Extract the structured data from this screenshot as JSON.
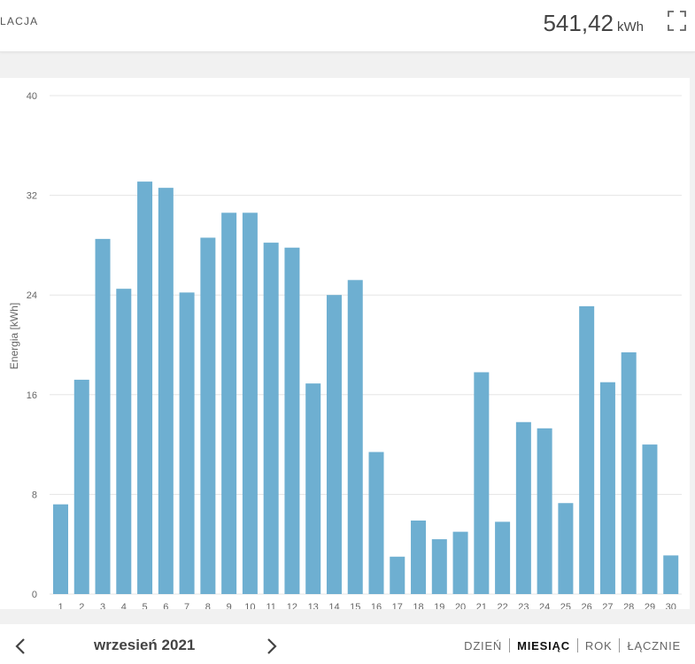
{
  "header": {
    "title": "LACJA",
    "energy_value": "541,42",
    "energy_unit": "kWh",
    "fullscreen_icon": "expand-icon"
  },
  "footer": {
    "period_label": "wrzesień 2021",
    "prev_icon": "chevron-left-icon",
    "next_icon": "chevron-right-icon",
    "tabs": [
      {
        "label": "DZIEŃ",
        "active": false
      },
      {
        "label": "MIESIĄC",
        "active": true
      },
      {
        "label": "ROK",
        "active": false
      },
      {
        "label": "ŁĄCZNIE",
        "active": false
      }
    ]
  },
  "colors": {
    "bar": "#6eafd1",
    "grid": "#e5e5e5",
    "axis_text": "#666666"
  },
  "chart_data": {
    "type": "bar",
    "title": "",
    "xlabel": "",
    "ylabel": "Energia [kWh]",
    "ylim": [
      0,
      40
    ],
    "yticks": [
      0,
      8,
      16,
      24,
      32,
      40
    ],
    "grid": true,
    "categories": [
      "1",
      "2",
      "3",
      "4",
      "5",
      "6",
      "7",
      "8",
      "9",
      "10",
      "11",
      "12",
      "13",
      "14",
      "15",
      "16",
      "17",
      "18",
      "19",
      "20",
      "21",
      "22",
      "23",
      "24",
      "25",
      "26",
      "27",
      "28",
      "29",
      "30"
    ],
    "values": [
      7.2,
      17.2,
      28.5,
      24.5,
      33.1,
      32.6,
      24.2,
      28.6,
      30.6,
      30.6,
      28.2,
      27.8,
      16.9,
      24.0,
      25.2,
      11.4,
      3.0,
      5.9,
      4.4,
      5.0,
      17.8,
      5.8,
      13.8,
      13.3,
      7.3,
      23.1,
      17.0,
      19.4,
      12.0,
      3.1
    ]
  }
}
